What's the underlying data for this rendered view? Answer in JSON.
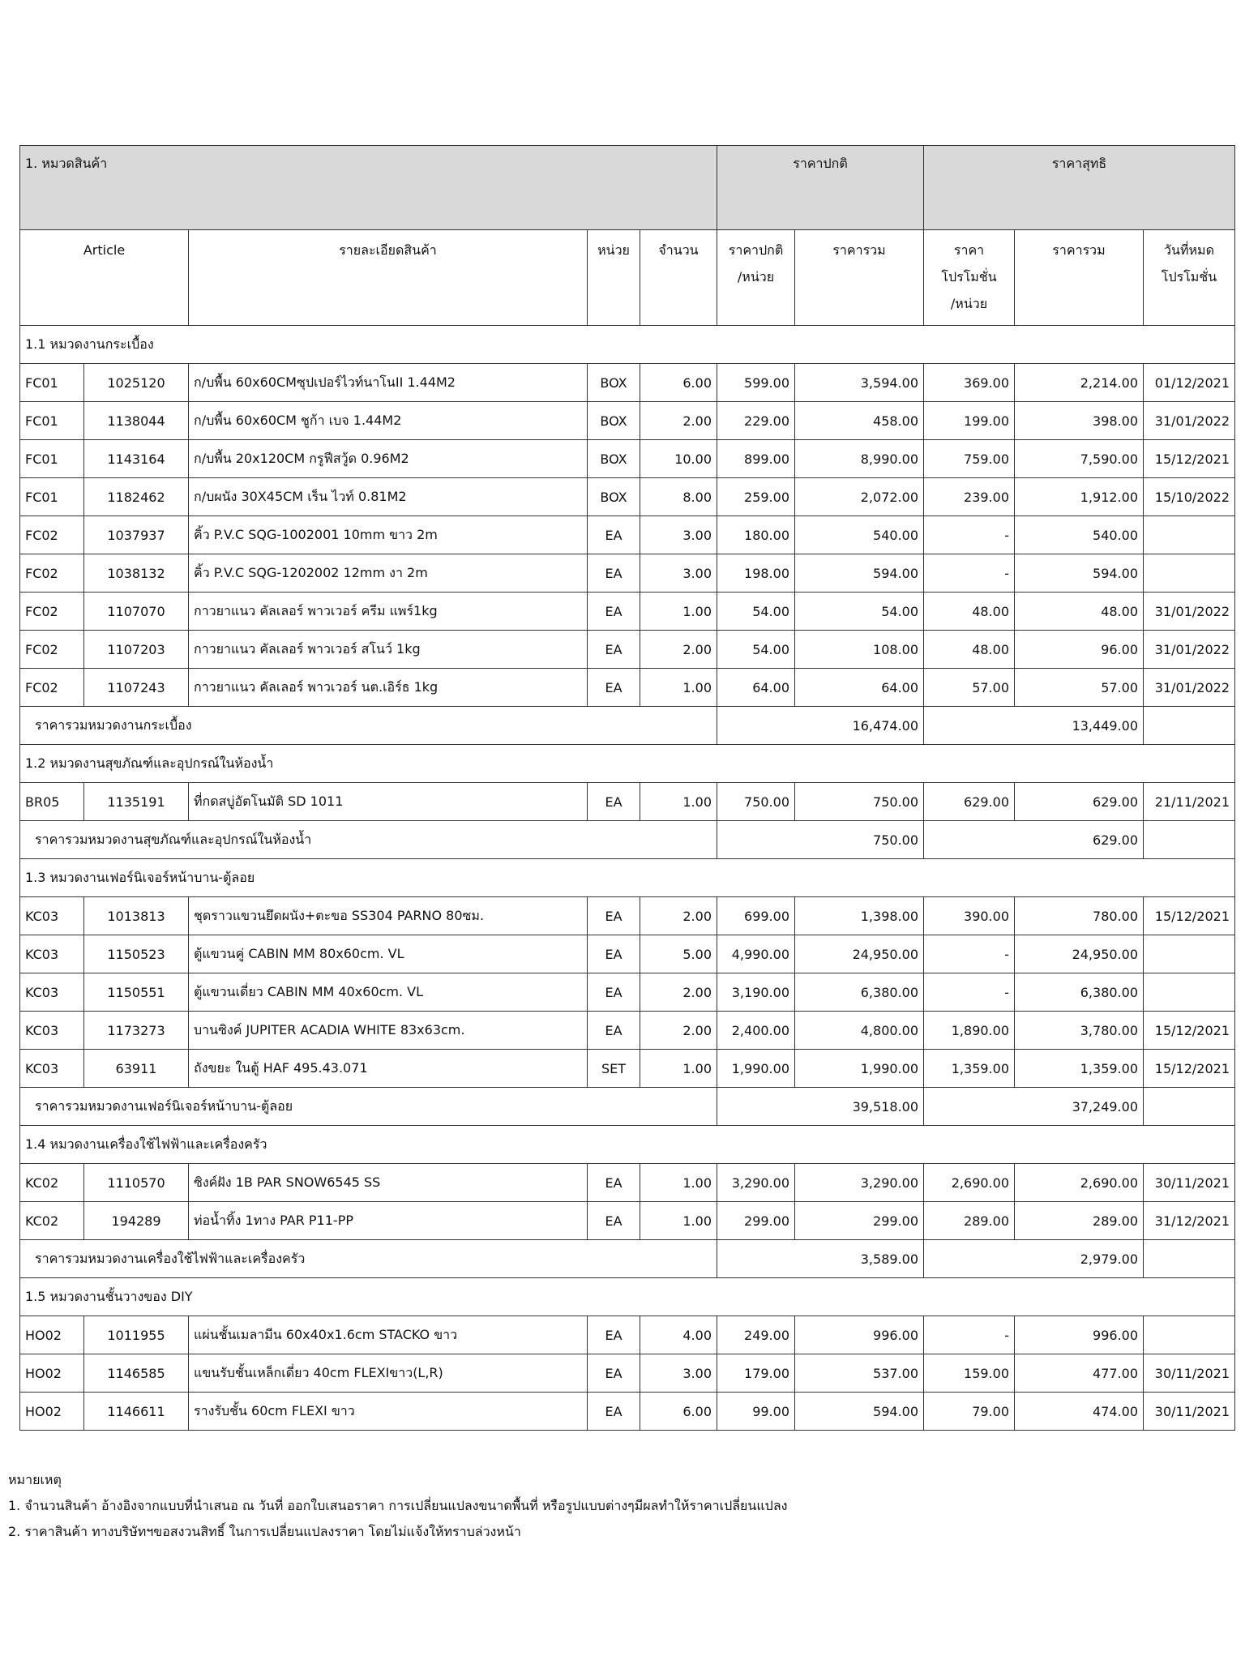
{
  "header": {
    "category": "1. หมวดสินค้า",
    "regular_price": "ราคาปกติ",
    "net_price": "ราคาสุทธิ"
  },
  "columns": [
    "Article",
    "รายละเอียดสินค้า",
    "หน่วย",
    "จำนวน",
    "ราคาปกติ\n/หน่วย",
    "ราคารวม",
    "ราคา\nโปรโมชั่น\n/หน่วย",
    "ราคารวม",
    "วันที่หมด\nโปรโมชั่น"
  ],
  "sections": [
    {
      "title": "1.1 หมวดงานกระเบื้อง",
      "rows": [
        [
          "FC01",
          "1025120",
          "ก/บพื้น 60x60CMซุปเปอร์ไวท์นาโนII 1.44M2",
          "BOX",
          "6.00",
          "599.00",
          "3,594.00",
          "369.00",
          "2,214.00",
          "01/12/2021"
        ],
        [
          "FC01",
          "1138044",
          "ก/บพื้น 60x60CM ชูก้า เบจ 1.44M2",
          "BOX",
          "2.00",
          "229.00",
          "458.00",
          "199.00",
          "398.00",
          "31/01/2022"
        ],
        [
          "FC01",
          "1143164",
          "ก/บพื้น 20x120CM กรูฟีสวู้ด  0.96M2",
          "BOX",
          "10.00",
          "899.00",
          "8,990.00",
          "759.00",
          "7,590.00",
          "15/12/2021"
        ],
        [
          "FC01",
          "1182462",
          "ก/บผนัง 30X45CM เร็น ไวท์ 0.81M2",
          "BOX",
          "8.00",
          "259.00",
          "2,072.00",
          "239.00",
          "1,912.00",
          "15/10/2022"
        ],
        [
          "FC02",
          "1037937",
          "คิ้ว P.V.C SQG-1002001 10mm ขาว 2m",
          "EA",
          "3.00",
          "180.00",
          "540.00",
          "-",
          "540.00"
        ],
        [
          "FC02",
          "1038132",
          "คิ้ว P.V.C SQG-1202002 12mm งา 2m",
          "EA",
          "3.00",
          "198.00",
          "594.00",
          "-",
          "594.00"
        ],
        [
          "FC02",
          "1107070",
          "กาวยาแนว คัลเลอร์ พาวเวอร์ ครีม แพร์1kg",
          "EA",
          "1.00",
          "54.00",
          "54.00",
          "48.00",
          "48.00",
          "31/01/2022"
        ],
        [
          "FC02",
          "1107203",
          "กาวยาแนว คัลเลอร์ พาวเวอร์ สโนว์ 1kg",
          "EA",
          "2.00",
          "54.00",
          "108.00",
          "48.00",
          "96.00",
          "31/01/2022"
        ],
        [
          "FC02",
          "1107243",
          "กาวยาแนว คัลเลอร์ พาวเวอร์ นต.เอิร์ธ 1kg",
          "EA",
          "1.00",
          "64.00",
          "64.00",
          "57.00",
          "57.00",
          "31/01/2022"
        ]
      ],
      "subtotal": {
        "label": "ราคารวมหมวดงานกระเบื้อง",
        "regular_total": "16,474.00",
        "net_total": "13,449.00"
      }
    },
    {
      "title": "1.2 หมวดงานสุขภัณฑ์และอุปกรณ์ในห้องน้ำ",
      "rows": [
        [
          "BR05",
          "1135191",
          "ที่กดสบู่อัตโนมัติ SD 1011",
          "EA",
          "1.00",
          "750.00",
          "750.00",
          "629.00",
          "629.00",
          "21/11/2021"
        ]
      ],
      "subtotal": {
        "label": "ราคารวมหมวดงานสุขภัณฑ์และอุปกรณ์ในห้องน้ำ",
        "regular_total": "750.00",
        "net_total": "629.00"
      }
    },
    {
      "title": "1.3 หมวดงานเฟอร์นิเจอร์หน้าบาน-ตู้ลอย",
      "rows": [
        [
          "KC03",
          "1013813",
          "ชุดราวแขวนยึดผนัง+ตะขอ SS304 PARNO 80ซม.",
          "EA",
          "2.00",
          "699.00",
          "1,398.00",
          "390.00",
          "780.00",
          "15/12/2021"
        ],
        [
          "KC03",
          "1150523",
          "ตู้แขวนคู่ CABIN MM 80x60cm. VL",
          "EA",
          "5.00",
          "4,990.00",
          "24,950.00",
          "-",
          "24,950.00"
        ],
        [
          "KC03",
          "1150551",
          "ตู้แขวนเดี่ยว CABIN MM 40x60cm. VL",
          "EA",
          "2.00",
          "3,190.00",
          "6,380.00",
          "-",
          "6,380.00"
        ],
        [
          "KC03",
          "1173273",
          "บานซิงค์ JUPITER ACADIA WHITE 83x63cm.",
          "EA",
          "2.00",
          "2,400.00",
          "4,800.00",
          "1,890.00",
          "3,780.00",
          "15/12/2021"
        ],
        [
          "KC03",
          "63911",
          "ถังขยะ ในตู้ HAF 495.43.071",
          "SET",
          "1.00",
          "1,990.00",
          "1,990.00",
          "1,359.00",
          "1,359.00",
          "15/12/2021"
        ]
      ],
      "subtotal": {
        "label": "ราคารวมหมวดงานเฟอร์นิเจอร์หน้าบาน-ตู้ลอย",
        "regular_total": "39,518.00",
        "net_total": "37,249.00"
      }
    },
    {
      "title": "1.4 หมวดงานเครื่องใช้ไฟฟ้าและเครื่องครัว",
      "rows": [
        [
          "KC02",
          "1110570",
          "ซิงค์ฝัง 1B PAR SNOW6545 SS",
          "EA",
          "1.00",
          "3,290.00",
          "3,290.00",
          "2,690.00",
          "2,690.00",
          "30/11/2021"
        ],
        [
          "KC02",
          "194289",
          "ท่อน้ำทิ้ง 1ทาง PAR P11-PP",
          "EA",
          "1.00",
          "299.00",
          "299.00",
          "289.00",
          "289.00",
          "31/12/2021"
        ]
      ],
      "subtotal": {
        "label": "ราคารวมหมวดงานเครื่องใช้ไฟฟ้าและเครื่องครัว",
        "regular_total": "3,589.00",
        "net_total": "2,979.00"
      }
    },
    {
      "title": "1.5 หมวดงานชั้นวางของ DIY",
      "rows": [
        [
          "HO02",
          "1011955",
          "แผ่นชั้นเมลามีน 60x40x1.6cm STACKO ขาว",
          "EA",
          "4.00",
          "249.00",
          "996.00",
          "-",
          "996.00"
        ],
        [
          "HO02",
          "1146585",
          "แขนรับชั้นเหล็กเดี่ยว 40cm FLEXIขาว(L,R)",
          "EA",
          "3.00",
          "179.00",
          "537.00",
          "159.00",
          "477.00",
          "30/11/2021"
        ],
        [
          "HO02",
          "1146611",
          "รางรับชั้น 60cm FLEXI ขาว",
          "EA",
          "6.00",
          "99.00",
          "594.00",
          "79.00",
          "474.00",
          "30/11/2021"
        ]
      ]
    }
  ],
  "notes": {
    "title": "หมายเหตุ",
    "items": [
      "1. จำนวนสินค้า อ้างอิงจากแบบที่นำเสนอ ณ วันที่ ออกใบเสนอราคา การเปลี่ยนแปลงขนาดพื้นที่ หรือรูปแบบต่างๆมีผลทำให้ราคาเปลี่ยนแปลง",
      "2. ราคาสินค้า ทางบริษัทฯขอสงวนสิทธิ์ ในการเปลี่ยนแปลงราคา โดยไม่แจ้งให้ทราบล่วงหน้า"
    ]
  }
}
